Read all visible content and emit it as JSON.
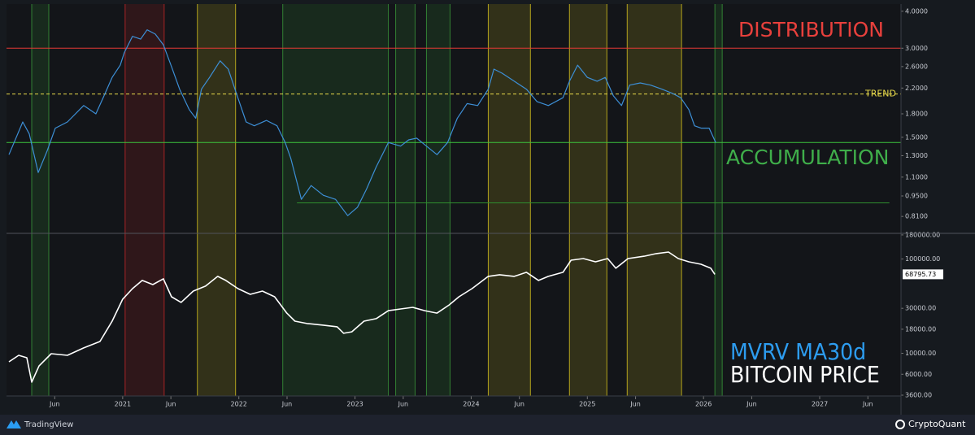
{
  "chart_data": [
    {
      "type": "line",
      "log_scale": true,
      "annotations": [
        {
          "text": "DISTRIBUTION",
          "color": "#e8403c"
        },
        {
          "text": "ACCUMULATION",
          "color": "#3fae4a"
        }
      ],
      "legend_text": {
        "text": "MVRV MA30d",
        "color": "#2d9cef"
      },
      "xlim": [
        2020.0,
        2027.7
      ],
      "ylim": [
        0.71,
        4.23
      ],
      "yticks": [
        {
          "value": 4,
          "label": "4.0000"
        },
        {
          "value": 3,
          "label": "3.0000"
        },
        {
          "value": 2.6,
          "label": "2.6000"
        },
        {
          "value": 2.2,
          "label": "2.2000"
        },
        {
          "value": 1.8,
          "label": "1.8000"
        },
        {
          "value": 1.5,
          "label": "1.5000"
        },
        {
          "value": 1.3,
          "label": "1.3000"
        },
        {
          "value": 1.1,
          "label": "1.1000"
        },
        {
          "value": 0.95,
          "label": "0.9500"
        },
        {
          "value": 0.81,
          "label": "0.8100"
        }
      ],
      "levels": [
        {
          "value": 3.0,
          "color": "#e53935"
        },
        {
          "value": 2.1,
          "color": "#e8d94a",
          "label": "TREND",
          "dashed": true
        },
        {
          "value": 1.44,
          "color": "#3cc43c"
        },
        {
          "value": 0.9,
          "color": "#2f8f2f",
          "start": 2022.5,
          "end": 2027.6
        }
      ],
      "zones": [
        {
          "start": 2020.217,
          "end": 2020.364,
          "color": "#3a9a3a"
        },
        {
          "start": 2021.021,
          "end": 2021.357,
          "color": "#c62828"
        },
        {
          "start": 2021.643,
          "end": 2021.972,
          "color": "#d8c41e"
        },
        {
          "start": 2022.378,
          "end": 2023.287,
          "color": "#3a9a3a"
        },
        {
          "start": 2023.35,
          "end": 2023.517,
          "color": "#3a9a3a"
        },
        {
          "start": 2023.615,
          "end": 2023.818,
          "color": "#3a9a3a"
        },
        {
          "start": 2024.147,
          "end": 2024.51,
          "color": "#d8c41e"
        },
        {
          "start": 2024.846,
          "end": 2025.168,
          "color": "#d8c41e"
        },
        {
          "start": 2025.343,
          "end": 2025.811,
          "color": "#d8c41e"
        },
        {
          "start": 2026.098,
          "end": 2026.161,
          "color": "#3a9a3a"
        }
      ],
      "series": [
        {
          "name": "MVRV MA30d",
          "color": "#3d8fd6",
          "x": [
            2020.021,
            2020.14,
            2020.196,
            2020.273,
            2020.35,
            2020.42,
            2020.524,
            2020.664,
            2020.769,
            2020.839,
            2020.909,
            2020.979,
            2021.014,
            2021.084,
            2021.154,
            2021.21,
            2021.28,
            2021.35,
            2021.42,
            2021.49,
            2021.573,
            2021.629,
            2021.678,
            2021.748,
            2021.839,
            2021.909,
            2021.979,
            2022.063,
            2022.133,
            2022.238,
            2022.329,
            2022.399,
            2022.448,
            2022.538,
            2022.622,
            2022.727,
            2022.832,
            2022.937,
            2023.021,
            2023.098,
            2023.182,
            2023.287,
            2023.392,
            2023.462,
            2023.531,
            2023.615,
            2023.706,
            2023.797,
            2023.881,
            2023.965,
            2024.056,
            2024.147,
            2024.196,
            2024.266,
            2024.371,
            2024.476,
            2024.566,
            2024.664,
            2024.79,
            2024.846,
            2024.916,
            2025.0,
            2025.084,
            2025.154,
            2025.224,
            2025.294,
            2025.364,
            2025.455,
            2025.545,
            2025.643,
            2025.734,
            2025.804,
            2025.874,
            2025.923,
            2025.979,
            2026.049,
            2026.105
          ],
          "values": [
            1.31,
            1.69,
            1.54,
            1.14,
            1.35,
            1.61,
            1.69,
            1.92,
            1.8,
            2.07,
            2.39,
            2.63,
            2.9,
            3.29,
            3.22,
            3.46,
            3.35,
            3.08,
            2.6,
            2.18,
            1.86,
            1.74,
            2.18,
            2.39,
            2.72,
            2.55,
            2.11,
            1.69,
            1.64,
            1.71,
            1.64,
            1.44,
            1.27,
            0.925,
            1.03,
            0.955,
            0.925,
            0.815,
            0.87,
            1.0,
            1.19,
            1.44,
            1.4,
            1.47,
            1.49,
            1.4,
            1.31,
            1.44,
            1.74,
            1.95,
            1.92,
            2.18,
            2.55,
            2.47,
            2.32,
            2.18,
            1.98,
            1.92,
            2.04,
            2.32,
            2.63,
            2.39,
            2.32,
            2.39,
            2.07,
            1.92,
            2.25,
            2.29,
            2.25,
            2.18,
            2.11,
            2.04,
            1.86,
            1.64,
            1.61,
            1.61,
            1.44
          ]
        }
      ]
    },
    {
      "type": "line",
      "log_scale": true,
      "legend_text": {
        "text": "BITCOIN PRICE",
        "color": "#ffffff"
      },
      "xlim": [
        2020.0,
        2027.7
      ],
      "xticks": [
        {
          "value": 2020.415,
          "label": "Jun"
        },
        2021,
        {
          "value": 2021.415,
          "label": "Jun"
        },
        2022,
        {
          "value": 2022.415,
          "label": "Jun"
        },
        2023,
        {
          "value": 2023.415,
          "label": "Jun"
        },
        2024,
        {
          "value": 2024.415,
          "label": "Jun"
        },
        2025,
        {
          "value": 2025.415,
          "label": "Jun"
        },
        2026,
        {
          "value": 2026.415,
          "label": "Jun"
        },
        2027,
        {
          "value": 2027.415,
          "label": "Jun"
        }
      ],
      "ylim": [
        3530,
        187000
      ],
      "yticks": [
        {
          "value": 180000,
          "label": "180000.00"
        },
        {
          "value": 100000,
          "label": "100000.00"
        },
        {
          "value": 30000,
          "label": "30000.00"
        },
        {
          "value": 18000,
          "label": "18000.00"
        },
        {
          "value": 10000,
          "label": "10000.00"
        },
        {
          "value": 6000,
          "label": "6000.00"
        },
        {
          "value": 3600,
          "label": "3600.00"
        }
      ],
      "series": [
        {
          "name": "BITCOIN PRICE",
          "color": "#ffffff",
          "x": [
            2020.021,
            2020.105,
            2020.175,
            2020.217,
            2020.28,
            2020.385,
            2020.524,
            2020.664,
            2020.804,
            2020.909,
            2021.0,
            2021.084,
            2021.168,
            2021.259,
            2021.35,
            2021.42,
            2021.503,
            2021.608,
            2021.713,
            2021.818,
            2021.888,
            2021.993,
            2022.098,
            2022.203,
            2022.308,
            2022.413,
            2022.483,
            2022.587,
            2022.727,
            2022.846,
            2022.902,
            2022.972,
            2023.077,
            2023.182,
            2023.287,
            2023.392,
            2023.497,
            2023.601,
            2023.706,
            2023.811,
            2023.895,
            2024.007,
            2024.147,
            2024.245,
            2024.371,
            2024.476,
            2024.58,
            2024.664,
            2024.79,
            2024.86,
            2024.965,
            2025.07,
            2025.175,
            2025.245,
            2025.35,
            2025.49,
            2025.594,
            2025.699,
            2025.783,
            2025.874,
            2025.979,
            2026.063,
            2026.098
          ],
          "values": [
            8120,
            9520,
            8970,
            4950,
            7350,
            9910,
            9520,
            11400,
            13350,
            21900,
            37500,
            48500,
            59200,
            53600,
            61600,
            39800,
            34700,
            45700,
            51600,
            65400,
            59200,
            48500,
            42200,
            45700,
            39800,
            26700,
            21900,
            20700,
            19900,
            19100,
            16300,
            16900,
            21900,
            23300,
            28300,
            29500,
            30700,
            28300,
            26700,
            32600,
            39800,
            48500,
            65400,
            68100,
            65400,
            72200,
            59200,
            65400,
            72200,
            97100,
            101000,
            93300,
            101000,
            79800,
            101000,
            107000,
            114000,
            118500,
            101000,
            93300,
            88000,
            79800,
            68795.73
          ]
        }
      ]
    }
  ],
  "footer": {
    "left": "TradingView",
    "right": "CryptoQuant"
  }
}
